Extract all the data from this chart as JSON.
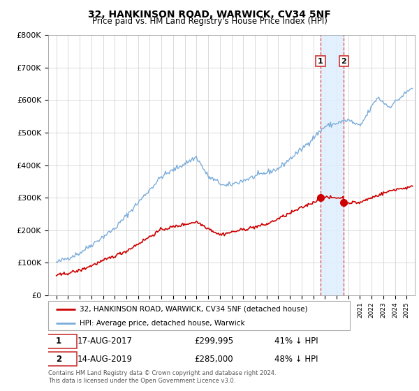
{
  "title": "32, HANKINSON ROAD, WARWICK, CV34 5NF",
  "subtitle": "Price paid vs. HM Land Registry's House Price Index (HPI)",
  "legend_line1": "32, HANKINSON ROAD, WARWICK, CV34 5NF (detached house)",
  "legend_line2": "HPI: Average price, detached house, Warwick",
  "marker1_date": "17-AUG-2017",
  "marker1_price": 299995,
  "marker1_pct": "41% ↓ HPI",
  "marker2_date": "14-AUG-2019",
  "marker2_price": 285000,
  "marker2_pct": "48% ↓ HPI",
  "footer": "Contains HM Land Registry data © Crown copyright and database right 2024.\nThis data is licensed under the Open Government Licence v3.0.",
  "red_color": "#cc0000",
  "blue_color": "#7aacda",
  "shade_color": "#ddeeff",
  "vline_color": "#dd4444",
  "ylim": [
    0,
    800000
  ],
  "yticks": [
    0,
    100000,
    200000,
    300000,
    400000,
    500000,
    600000,
    700000,
    800000
  ],
  "sale1_yr": 2017.625,
  "sale1_price": 299995,
  "sale2_yr": 2019.625,
  "sale2_price": 285000
}
